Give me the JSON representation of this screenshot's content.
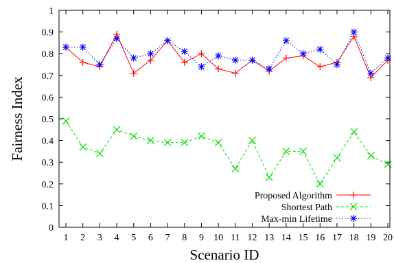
{
  "chart_data": {
    "type": "line",
    "title": "",
    "xlabel": "Scenario ID",
    "ylabel": "Fairness Index",
    "x": [
      1,
      2,
      3,
      4,
      5,
      6,
      7,
      8,
      9,
      10,
      11,
      12,
      13,
      14,
      15,
      16,
      17,
      18,
      19,
      20
    ],
    "xlim": [
      1,
      20
    ],
    "ylim": [
      0,
      1
    ],
    "yticks": [
      0,
      0.1,
      0.2,
      0.3,
      0.4,
      0.5,
      0.6,
      0.7,
      0.8,
      0.9,
      1
    ],
    "ytick_labels": [
      "0",
      "0.1",
      "0.2",
      "0.3",
      "0.4",
      "0.5",
      "0.6",
      "0.7",
      "0.8",
      "0.9",
      "1"
    ],
    "grid": false,
    "legend_position": "bottom-right",
    "series": [
      {
        "name": "Proposed Algorithm",
        "color": "#ff0000",
        "marker": "plus",
        "line_style": "solid",
        "values": [
          0.83,
          0.76,
          0.74,
          0.89,
          0.71,
          0.77,
          0.86,
          0.76,
          0.8,
          0.73,
          0.71,
          0.77,
          0.72,
          0.78,
          0.79,
          0.74,
          0.76,
          0.88,
          0.69,
          0.77
        ]
      },
      {
        "name": "Shortest Path",
        "color": "#00dd00",
        "marker": "cross",
        "line_style": "dashed",
        "values": [
          0.49,
          0.37,
          0.34,
          0.45,
          0.42,
          0.4,
          0.39,
          0.39,
          0.42,
          0.39,
          0.27,
          0.4,
          0.23,
          0.35,
          0.35,
          0.2,
          0.32,
          0.44,
          0.33,
          0.29
        ]
      },
      {
        "name": "Max-min Lifetime",
        "color": "#0000ff",
        "marker": "asterisk",
        "line_style": "dotted",
        "values": [
          0.83,
          0.83,
          0.75,
          0.87,
          0.78,
          0.8,
          0.86,
          0.81,
          0.74,
          0.79,
          0.77,
          0.77,
          0.73,
          0.86,
          0.8,
          0.82,
          0.75,
          0.9,
          0.71,
          0.78
        ]
      }
    ]
  }
}
